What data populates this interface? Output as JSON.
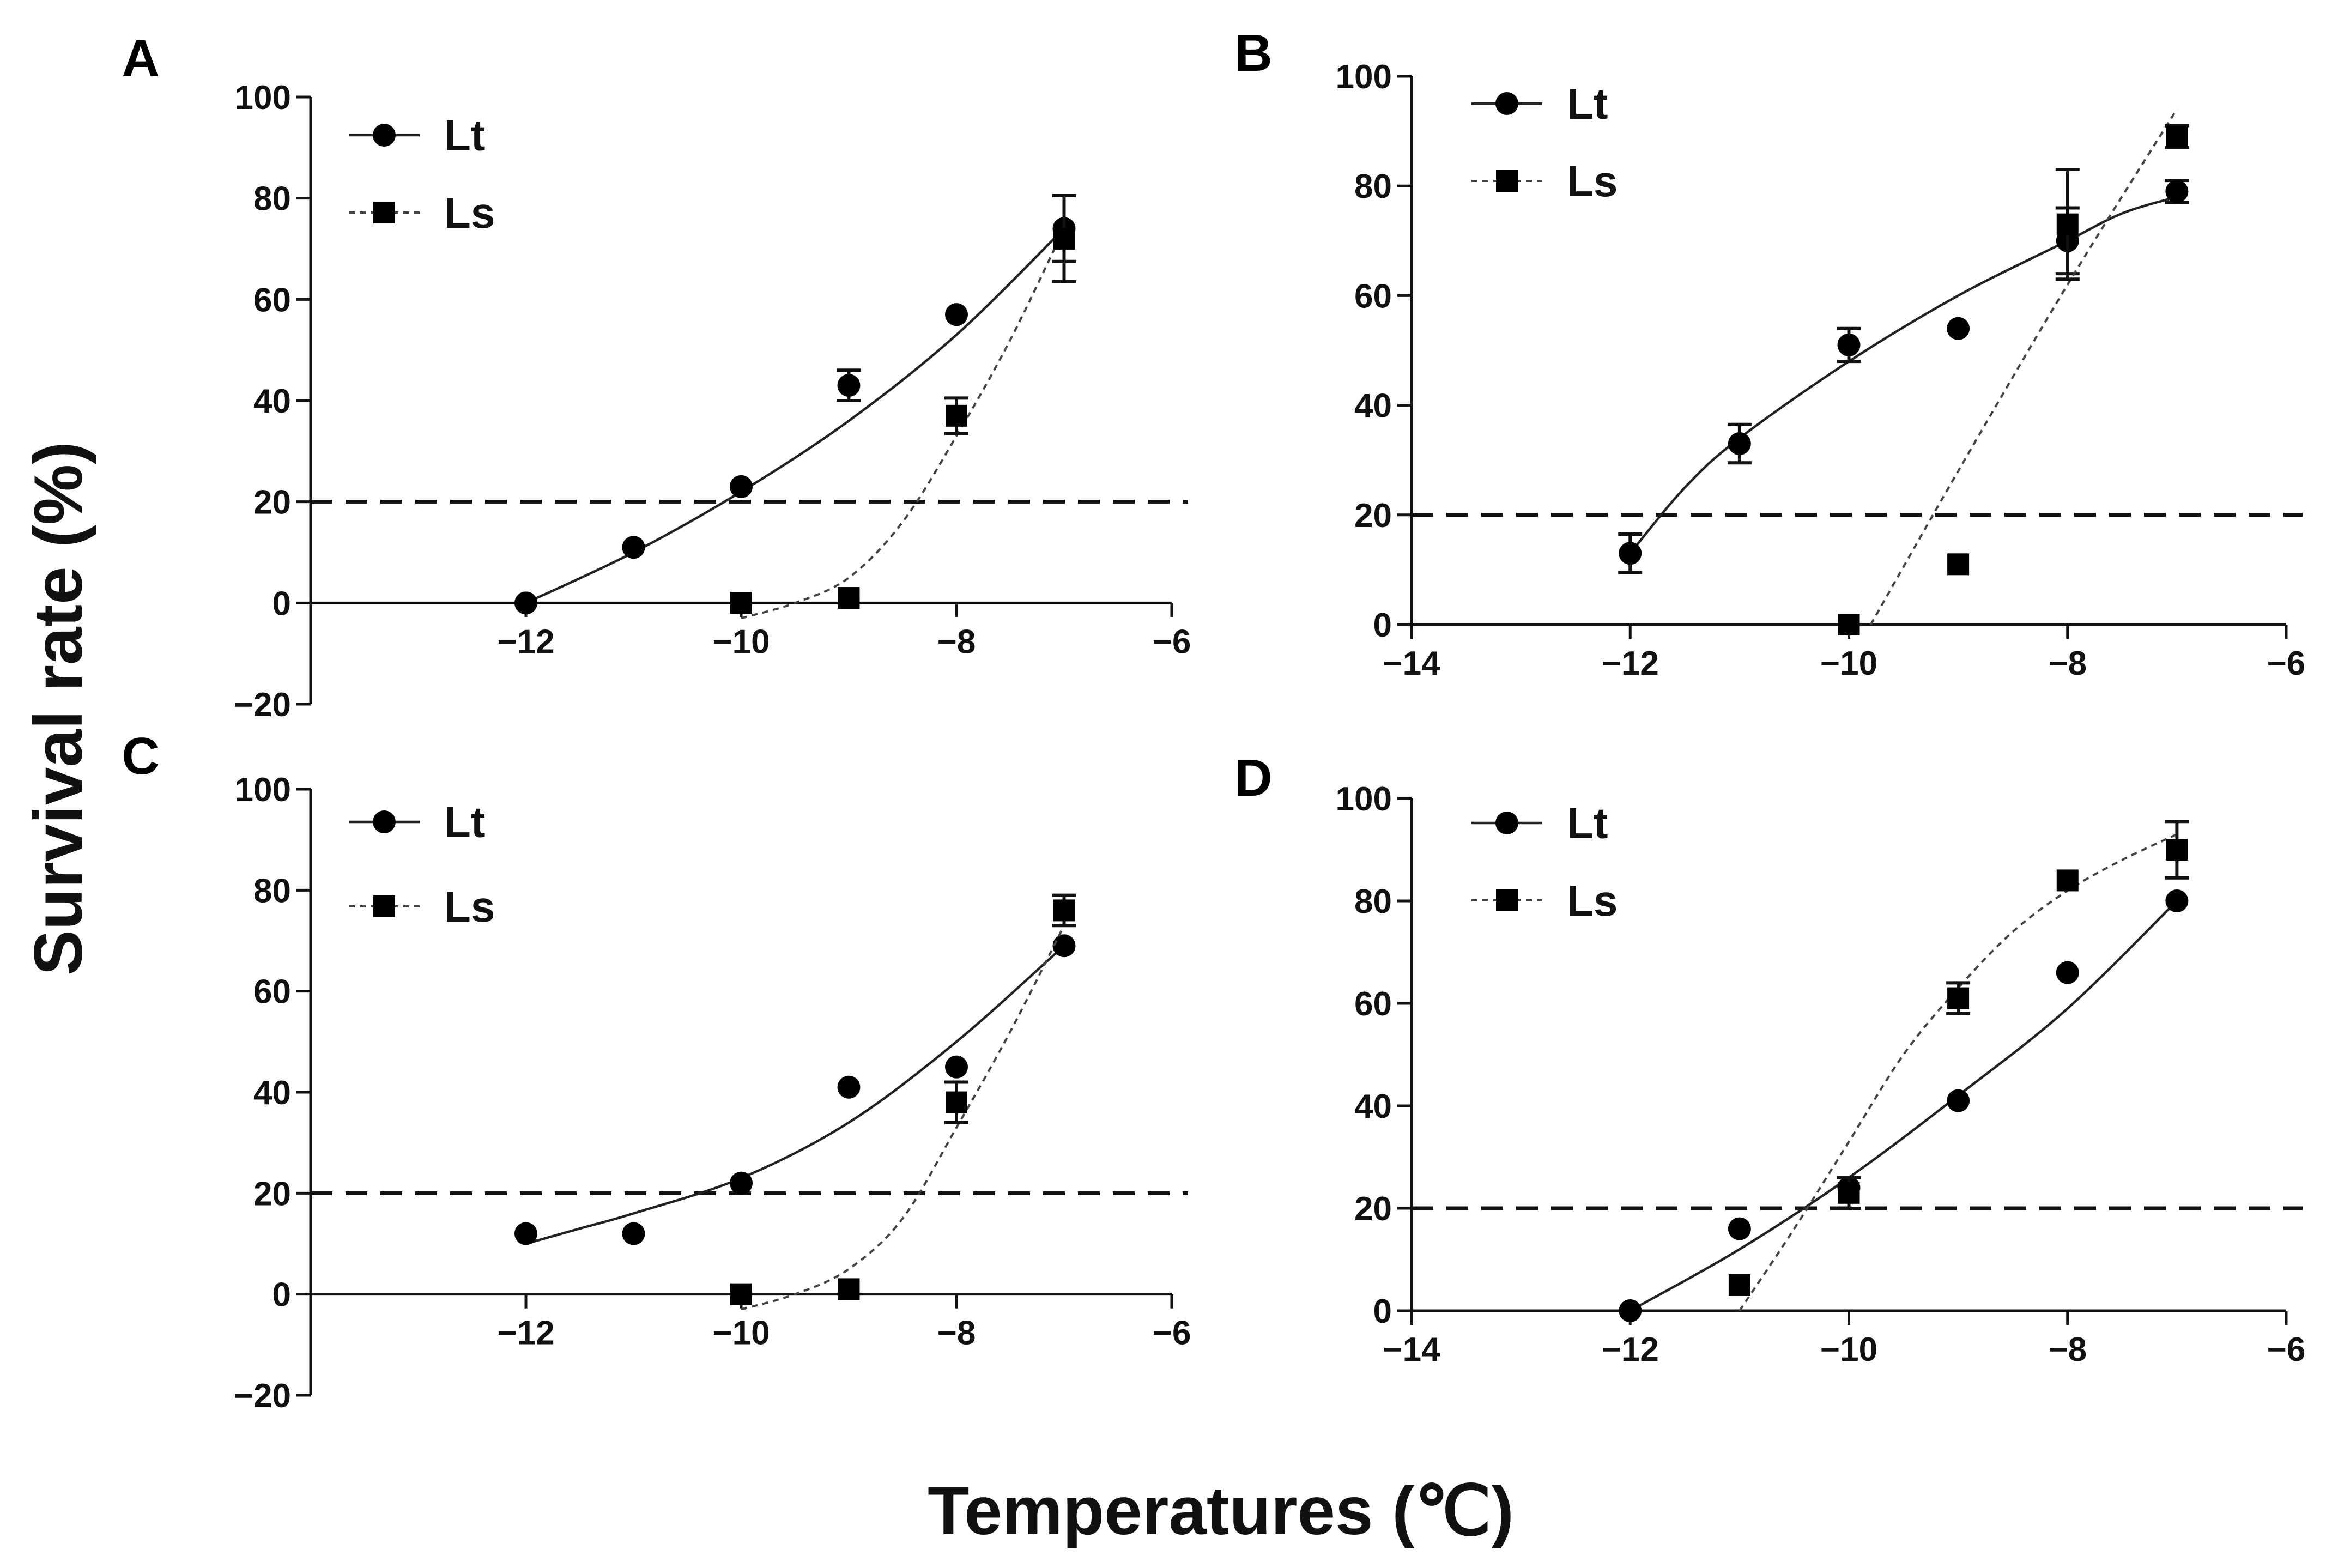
{
  "chart_data": {
    "y_axis_title": "Survival rate (%)",
    "x_axis_title": "Temperatures (℃)",
    "panels": [
      {
        "id": "A",
        "type": "scatter",
        "xlim": [
          -14,
          -6
        ],
        "ylim": [
          -20,
          100
        ],
        "x_ticks": [
          -12,
          -10,
          -8,
          -6
        ],
        "x_tick_labels": [
          "−12",
          "−10",
          "−8",
          "−6"
        ],
        "y_ticks": [
          -20,
          0,
          20,
          40,
          60,
          80,
          100
        ],
        "y_tick_labels": [
          "−20",
          "0",
          "20",
          "40",
          "60",
          "80",
          "100"
        ],
        "threshold": 20,
        "series": [
          {
            "name": "Lt",
            "marker": "circle",
            "line": "solid",
            "x": [
              -12,
              -11,
              -10,
              -9,
              -8,
              -7
            ],
            "y": [
              0,
              11,
              23,
              43,
              57,
              74
            ],
            "err": [
              0,
              0,
              0,
              3,
              0,
              6.5
            ],
            "fit": [
              [
                -12,
                0
              ],
              [
                -11,
                10
              ],
              [
                -10,
                22
              ],
              [
                -9,
                36
              ],
              [
                -8,
                53
              ],
              [
                -7,
                74
              ]
            ]
          },
          {
            "name": "Ls",
            "marker": "square",
            "line": "dotted",
            "x": [
              -10,
              -9,
              -8,
              -7
            ],
            "y": [
              0,
              1,
              37,
              72
            ],
            "err": [
              0,
              0,
              3.5,
              8.5
            ],
            "fit": [
              [
                -10,
                -3
              ],
              [
                -9.5,
                0
              ],
              [
                -9,
                5
              ],
              [
                -8.5,
                16
              ],
              [
                -8,
                33
              ],
              [
                -7.5,
                52
              ],
              [
                -7,
                74
              ]
            ]
          }
        ]
      },
      {
        "id": "B",
        "type": "scatter",
        "xlim": [
          -14,
          -6
        ],
        "ylim": [
          0,
          100
        ],
        "x_ticks": [
          -14,
          -12,
          -10,
          -8,
          -6
        ],
        "x_tick_labels": [
          "−14",
          "−12",
          "−10",
          "−8",
          "−6"
        ],
        "y_ticks": [
          0,
          20,
          40,
          60,
          80,
          100
        ],
        "y_tick_labels": [
          "0",
          "20",
          "40",
          "60",
          "80",
          "100"
        ],
        "threshold": 20,
        "series": [
          {
            "name": "Lt",
            "marker": "circle",
            "line": "solid",
            "x": [
              -12,
              -11,
              -10,
              -9,
              -8,
              -7
            ],
            "y": [
              13,
              33,
              51,
              54,
              70,
              79
            ],
            "err": [
              3.5,
              3.5,
              3,
              0,
              6,
              2
            ],
            "fit": [
              [
                -12,
                13
              ],
              [
                -11.5,
                25
              ],
              [
                -11,
                34
              ],
              [
                -10,
                48
              ],
              [
                -9,
                60
              ],
              [
                -8,
                70
              ],
              [
                -7.5,
                75
              ],
              [
                -7,
                78
              ]
            ]
          },
          {
            "name": "Ls",
            "marker": "square",
            "line": "dotted",
            "x": [
              -10,
              -9,
              -8,
              -7
            ],
            "y": [
              0,
              11,
              73,
              89
            ],
            "err": [
              0,
              0,
              10,
              2
            ],
            "fit": [
              [
                -9.8,
                0
              ],
              [
                -9,
                28
              ],
              [
                -8,
                62
              ],
              [
                -7,
                94
              ]
            ]
          }
        ]
      },
      {
        "id": "C",
        "type": "scatter",
        "xlim": [
          -14,
          -6
        ],
        "ylim": [
          -20,
          100
        ],
        "x_ticks": [
          -12,
          -10,
          -8,
          -6
        ],
        "x_tick_labels": [
          "−12",
          "−10",
          "−8",
          "−6"
        ],
        "y_ticks": [
          -20,
          0,
          20,
          40,
          60,
          80,
          100
        ],
        "y_tick_labels": [
          "−20",
          "0",
          "20",
          "40",
          "60",
          "80",
          "100"
        ],
        "threshold": 20,
        "series": [
          {
            "name": "Lt",
            "marker": "circle",
            "line": "solid",
            "x": [
              -12,
              -11,
              -10,
              -9,
              -8,
              -7
            ],
            "y": [
              12,
              12,
              22,
              41,
              45,
              69
            ],
            "err": [
              0,
              0,
              0,
              0,
              0,
              0
            ],
            "fit": [
              [
                -12,
                10
              ],
              [
                -11.5,
                13
              ],
              [
                -11,
                16
              ],
              [
                -10,
                23
              ],
              [
                -9,
                34
              ],
              [
                -8,
                50
              ],
              [
                -7,
                69
              ]
            ]
          },
          {
            "name": "Ls",
            "marker": "square",
            "line": "dotted",
            "x": [
              -10,
              -9,
              -8,
              -7
            ],
            "y": [
              0,
              1,
              38,
              76
            ],
            "err": [
              0,
              0,
              4,
              3
            ],
            "fit": [
              [
                -10,
                -3
              ],
              [
                -9.5,
                0
              ],
              [
                -9,
                5
              ],
              [
                -8.5,
                15
              ],
              [
                -8,
                33
              ],
              [
                -7.5,
                52
              ],
              [
                -7,
                73
              ]
            ]
          }
        ]
      },
      {
        "id": "D",
        "type": "scatter",
        "xlim": [
          -14,
          -6
        ],
        "ylim": [
          0,
          100
        ],
        "x_ticks": [
          -14,
          -12,
          -10,
          -8,
          -6
        ],
        "x_tick_labels": [
          "−14",
          "−12",
          "−10",
          "−8",
          "−6"
        ],
        "y_ticks": [
          0,
          20,
          40,
          60,
          80,
          100
        ],
        "y_tick_labels": [
          "0",
          "20",
          "40",
          "60",
          "80",
          "100"
        ],
        "threshold": 20,
        "series": [
          {
            "name": "Lt",
            "marker": "circle",
            "line": "solid",
            "x": [
              -12,
              -11,
              -10,
              -9,
              -8,
              -7
            ],
            "y": [
              0,
              16,
              24,
              41,
              66,
              80
            ],
            "err": [
              0,
              0,
              0,
              0,
              0,
              0
            ],
            "fit": [
              [
                -12,
                0
              ],
              [
                -11,
                12
              ],
              [
                -10,
                26
              ],
              [
                -9,
                42
              ],
              [
                -8,
                59
              ],
              [
                -7,
                80
              ]
            ]
          },
          {
            "name": "Ls",
            "marker": "square",
            "line": "dotted",
            "x": [
              -11,
              -10,
              -9,
              -8,
              -7
            ],
            "y": [
              5,
              23,
              61,
              84,
              90
            ],
            "err": [
              0,
              3,
              3,
              0,
              5.5
            ],
            "fit": [
              [
                -11,
                0
              ],
              [
                -10.5,
                16
              ],
              [
                -10,
                33
              ],
              [
                -9.5,
                50
              ],
              [
                -9,
                63
              ],
              [
                -8.5,
                74
              ],
              [
                -8,
                82
              ],
              [
                -7.5,
                88
              ],
              [
                -7,
                93
              ]
            ]
          }
        ]
      }
    ]
  }
}
